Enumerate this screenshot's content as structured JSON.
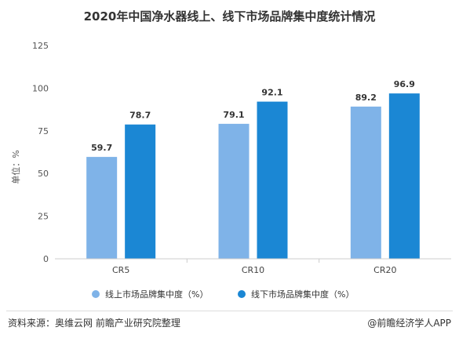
{
  "chart_data": {
    "type": "bar",
    "title": "2020年中国净水器线上、线下市场品牌集中度统计情况",
    "ylabel": "单位：%",
    "xlabel": "",
    "ylim": [
      0,
      125
    ],
    "yticks": [
      0,
      25,
      50,
      75,
      100,
      125
    ],
    "grid": false,
    "legend_position": "bottom",
    "categories": [
      "CR5",
      "CR10",
      "CR20"
    ],
    "series": [
      {
        "name": "线上市场品牌集中度（%）",
        "color": "#7fb3e8",
        "values": [
          59.7,
          79.1,
          89.2
        ]
      },
      {
        "name": "线下市场品牌集中度（%）",
        "color": "#1b87d4",
        "values": [
          78.7,
          92.1,
          96.9
        ]
      }
    ]
  },
  "footer": {
    "source": "资料来源：奥维云网 前瞻产业研究院整理",
    "credit": "@前瞻经济学人APP"
  }
}
